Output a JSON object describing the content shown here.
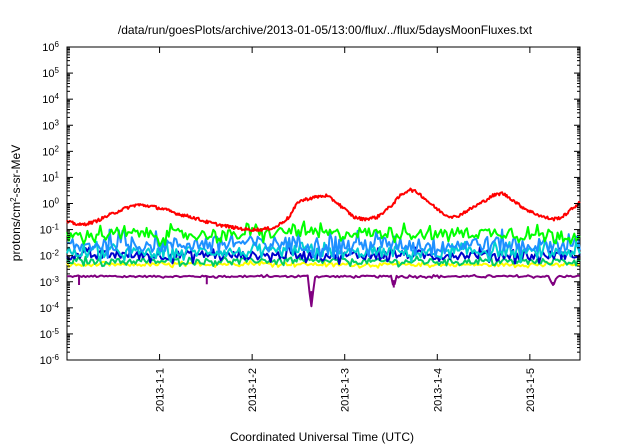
{
  "chart_data": {
    "type": "line",
    "title": "/data/run/goesPlots/archive/2013-01-05/13:00/flux/../flux/5daysMoonFluxes.txt",
    "xlabel": "Coordinated Universal Time (UTC)",
    "ylabel_parts": {
      "pre": "protons/cm",
      "sup": "2",
      "post": "-s-sr-MeV"
    },
    "y_scale": "log",
    "ylim": [
      1e-06,
      1000000
    ],
    "y_ticks": [
      {
        "value": 1e-06,
        "base": "10",
        "exp": "-6"
      },
      {
        "value": 1e-05,
        "base": "10",
        "exp": "-5"
      },
      {
        "value": 0.0001,
        "base": "10",
        "exp": "-4"
      },
      {
        "value": 0.001,
        "base": "10",
        "exp": "-3"
      },
      {
        "value": 0.01,
        "base": "10",
        "exp": "-2"
      },
      {
        "value": 0.1,
        "base": "10",
        "exp": "-1"
      },
      {
        "value": 1,
        "base": "10",
        "exp": "0"
      },
      {
        "value": 10,
        "base": "10",
        "exp": "1"
      },
      {
        "value": 100,
        "base": "10",
        "exp": "2"
      },
      {
        "value": 1000,
        "base": "10",
        "exp": "3"
      },
      {
        "value": 10000,
        "base": "10",
        "exp": "4"
      },
      {
        "value": 100000,
        "base": "10",
        "exp": "5"
      },
      {
        "value": 1000000,
        "base": "10",
        "exp": "6"
      }
    ],
    "xlim": [
      "2012-12-31T00:00",
      "2013-01-05T13:00"
    ],
    "x_ticks": [
      "2013-1-1",
      "2013-1-2",
      "2013-1-3",
      "2013-1-4",
      "2013-1-5"
    ],
    "grid": false,
    "legend": "none",
    "series": [
      {
        "color": "#ff0000",
        "values": [
          [
            0.0,
            0.2
          ],
          [
            0.15,
            0.15
          ],
          [
            0.3,
            0.2
          ],
          [
            0.45,
            0.35
          ],
          [
            0.6,
            0.6
          ],
          [
            0.75,
            0.9
          ],
          [
            0.9,
            0.8
          ],
          [
            1.05,
            0.6
          ],
          [
            1.2,
            0.4
          ],
          [
            1.35,
            0.3
          ],
          [
            1.5,
            0.2
          ],
          [
            1.65,
            0.15
          ],
          [
            1.8,
            0.12
          ],
          [
            1.95,
            0.1
          ],
          [
            2.1,
            0.1
          ],
          [
            2.25,
            0.12
          ],
          [
            2.4,
            0.3
          ],
          [
            2.5,
            1.2
          ],
          [
            2.6,
            1.5
          ],
          [
            2.7,
            1.8
          ],
          [
            2.8,
            2.0
          ],
          [
            2.9,
            1.2
          ],
          [
            3.0,
            0.6
          ],
          [
            3.1,
            0.3
          ],
          [
            3.2,
            0.25
          ],
          [
            3.35,
            0.3
          ],
          [
            3.5,
            0.8
          ],
          [
            3.6,
            2.0
          ],
          [
            3.7,
            3.5
          ],
          [
            3.8,
            2.5
          ],
          [
            3.9,
            1.2
          ],
          [
            4.0,
            0.6
          ],
          [
            4.1,
            0.35
          ],
          [
            4.2,
            0.3
          ],
          [
            4.35,
            0.6
          ],
          [
            4.5,
            1.2
          ],
          [
            4.6,
            2.0
          ],
          [
            4.7,
            2.5
          ],
          [
            4.8,
            1.5
          ],
          [
            4.9,
            0.8
          ],
          [
            5.0,
            0.5
          ],
          [
            5.15,
            0.3
          ],
          [
            5.25,
            0.25
          ],
          [
            5.35,
            0.3
          ],
          [
            5.45,
            0.6
          ],
          [
            5.54,
            1.1
          ]
        ]
      },
      {
        "color": "#00ff00",
        "values": [
          [
            0.0,
            0.05
          ],
          [
            0.2,
            0.06
          ],
          [
            0.4,
            0.07
          ],
          [
            0.6,
            0.06
          ],
          [
            0.8,
            0.08
          ],
          [
            1.0,
            0.06
          ],
          [
            1.2,
            0.07
          ],
          [
            1.4,
            0.06
          ],
          [
            1.6,
            0.07
          ],
          [
            1.8,
            0.06
          ],
          [
            2.0,
            0.08
          ],
          [
            2.2,
            0.07
          ],
          [
            2.4,
            0.09
          ],
          [
            2.6,
            0.08
          ],
          [
            2.8,
            0.07
          ],
          [
            3.0,
            0.07
          ],
          [
            3.2,
            0.08
          ],
          [
            3.4,
            0.07
          ],
          [
            3.6,
            0.08
          ],
          [
            3.8,
            0.07
          ],
          [
            4.0,
            0.06
          ],
          [
            4.2,
            0.08
          ],
          [
            4.4,
            0.07
          ],
          [
            4.6,
            0.08
          ],
          [
            4.8,
            0.07
          ],
          [
            5.0,
            0.06
          ],
          [
            5.2,
            0.07
          ],
          [
            5.4,
            0.06
          ],
          [
            5.54,
            0.06
          ]
        ],
        "jitter": 0.5
      },
      {
        "color": "#1e90ff",
        "values": [
          [
            0.0,
            0.02
          ],
          [
            0.5,
            0.03
          ],
          [
            1.0,
            0.025
          ],
          [
            1.5,
            0.03
          ],
          [
            2.0,
            0.03
          ],
          [
            2.5,
            0.03
          ],
          [
            3.0,
            0.025
          ],
          [
            3.5,
            0.03
          ],
          [
            4.0,
            0.025
          ],
          [
            4.5,
            0.03
          ],
          [
            5.0,
            0.025
          ],
          [
            5.54,
            0.03
          ]
        ],
        "jitter": 0.7
      },
      {
        "color": "#00d0d0",
        "values": [
          [
            0.0,
            0.012
          ],
          [
            0.5,
            0.015
          ],
          [
            1.0,
            0.012
          ],
          [
            1.5,
            0.015
          ],
          [
            2.0,
            0.013
          ],
          [
            2.5,
            0.015
          ],
          [
            3.0,
            0.013
          ],
          [
            3.5,
            0.014
          ],
          [
            4.0,
            0.012
          ],
          [
            4.5,
            0.015
          ],
          [
            5.0,
            0.013
          ],
          [
            5.54,
            0.014
          ]
        ],
        "jitter": 0.5
      },
      {
        "color": "#0000cc",
        "values": [
          [
            0.0,
            0.01
          ],
          [
            0.5,
            0.011
          ],
          [
            1.0,
            0.01
          ],
          [
            1.5,
            0.011
          ],
          [
            2.0,
            0.01
          ],
          [
            2.5,
            0.011
          ],
          [
            3.0,
            0.01
          ],
          [
            3.5,
            0.011
          ],
          [
            4.0,
            0.01
          ],
          [
            4.5,
            0.011
          ],
          [
            5.0,
            0.01
          ],
          [
            5.54,
            0.011
          ]
        ],
        "jitter": 0.4
      },
      {
        "color": "#00cc66",
        "values": [
          [
            0.0,
            0.006
          ],
          [
            1.0,
            0.006
          ],
          [
            2.0,
            0.0065
          ],
          [
            3.0,
            0.006
          ],
          [
            4.0,
            0.006
          ],
          [
            5.0,
            0.006
          ],
          [
            5.54,
            0.006
          ]
        ],
        "jitter": 0.25
      },
      {
        "color": "#ffff00",
        "values": [
          [
            0.0,
            0.0045
          ],
          [
            1.0,
            0.0045
          ],
          [
            2.0,
            0.005
          ],
          [
            3.0,
            0.0045
          ],
          [
            4.0,
            0.0045
          ],
          [
            5.0,
            0.0045
          ],
          [
            5.54,
            0.0045
          ]
        ],
        "jitter": 0.15
      },
      {
        "color": "#800080",
        "values": [
          [
            0.0,
            0.0016
          ],
          [
            0.12,
            0.0016
          ],
          [
            0.13,
            0.00075
          ],
          [
            0.14,
            0.0016
          ],
          [
            1.0,
            0.0016
          ],
          [
            1.5,
            0.0016
          ],
          [
            1.51,
            0.0008
          ],
          [
            1.52,
            0.0016
          ],
          [
            2.6,
            0.0016
          ],
          [
            2.64,
            0.00012
          ],
          [
            2.68,
            0.0016
          ],
          [
            3.5,
            0.0016
          ],
          [
            3.53,
            0.0006
          ],
          [
            3.56,
            0.0016
          ],
          [
            5.2,
            0.0016
          ],
          [
            5.25,
            0.0007
          ],
          [
            5.3,
            0.0016
          ],
          [
            5.54,
            0.0016
          ]
        ],
        "jitter": 0.08
      }
    ]
  }
}
